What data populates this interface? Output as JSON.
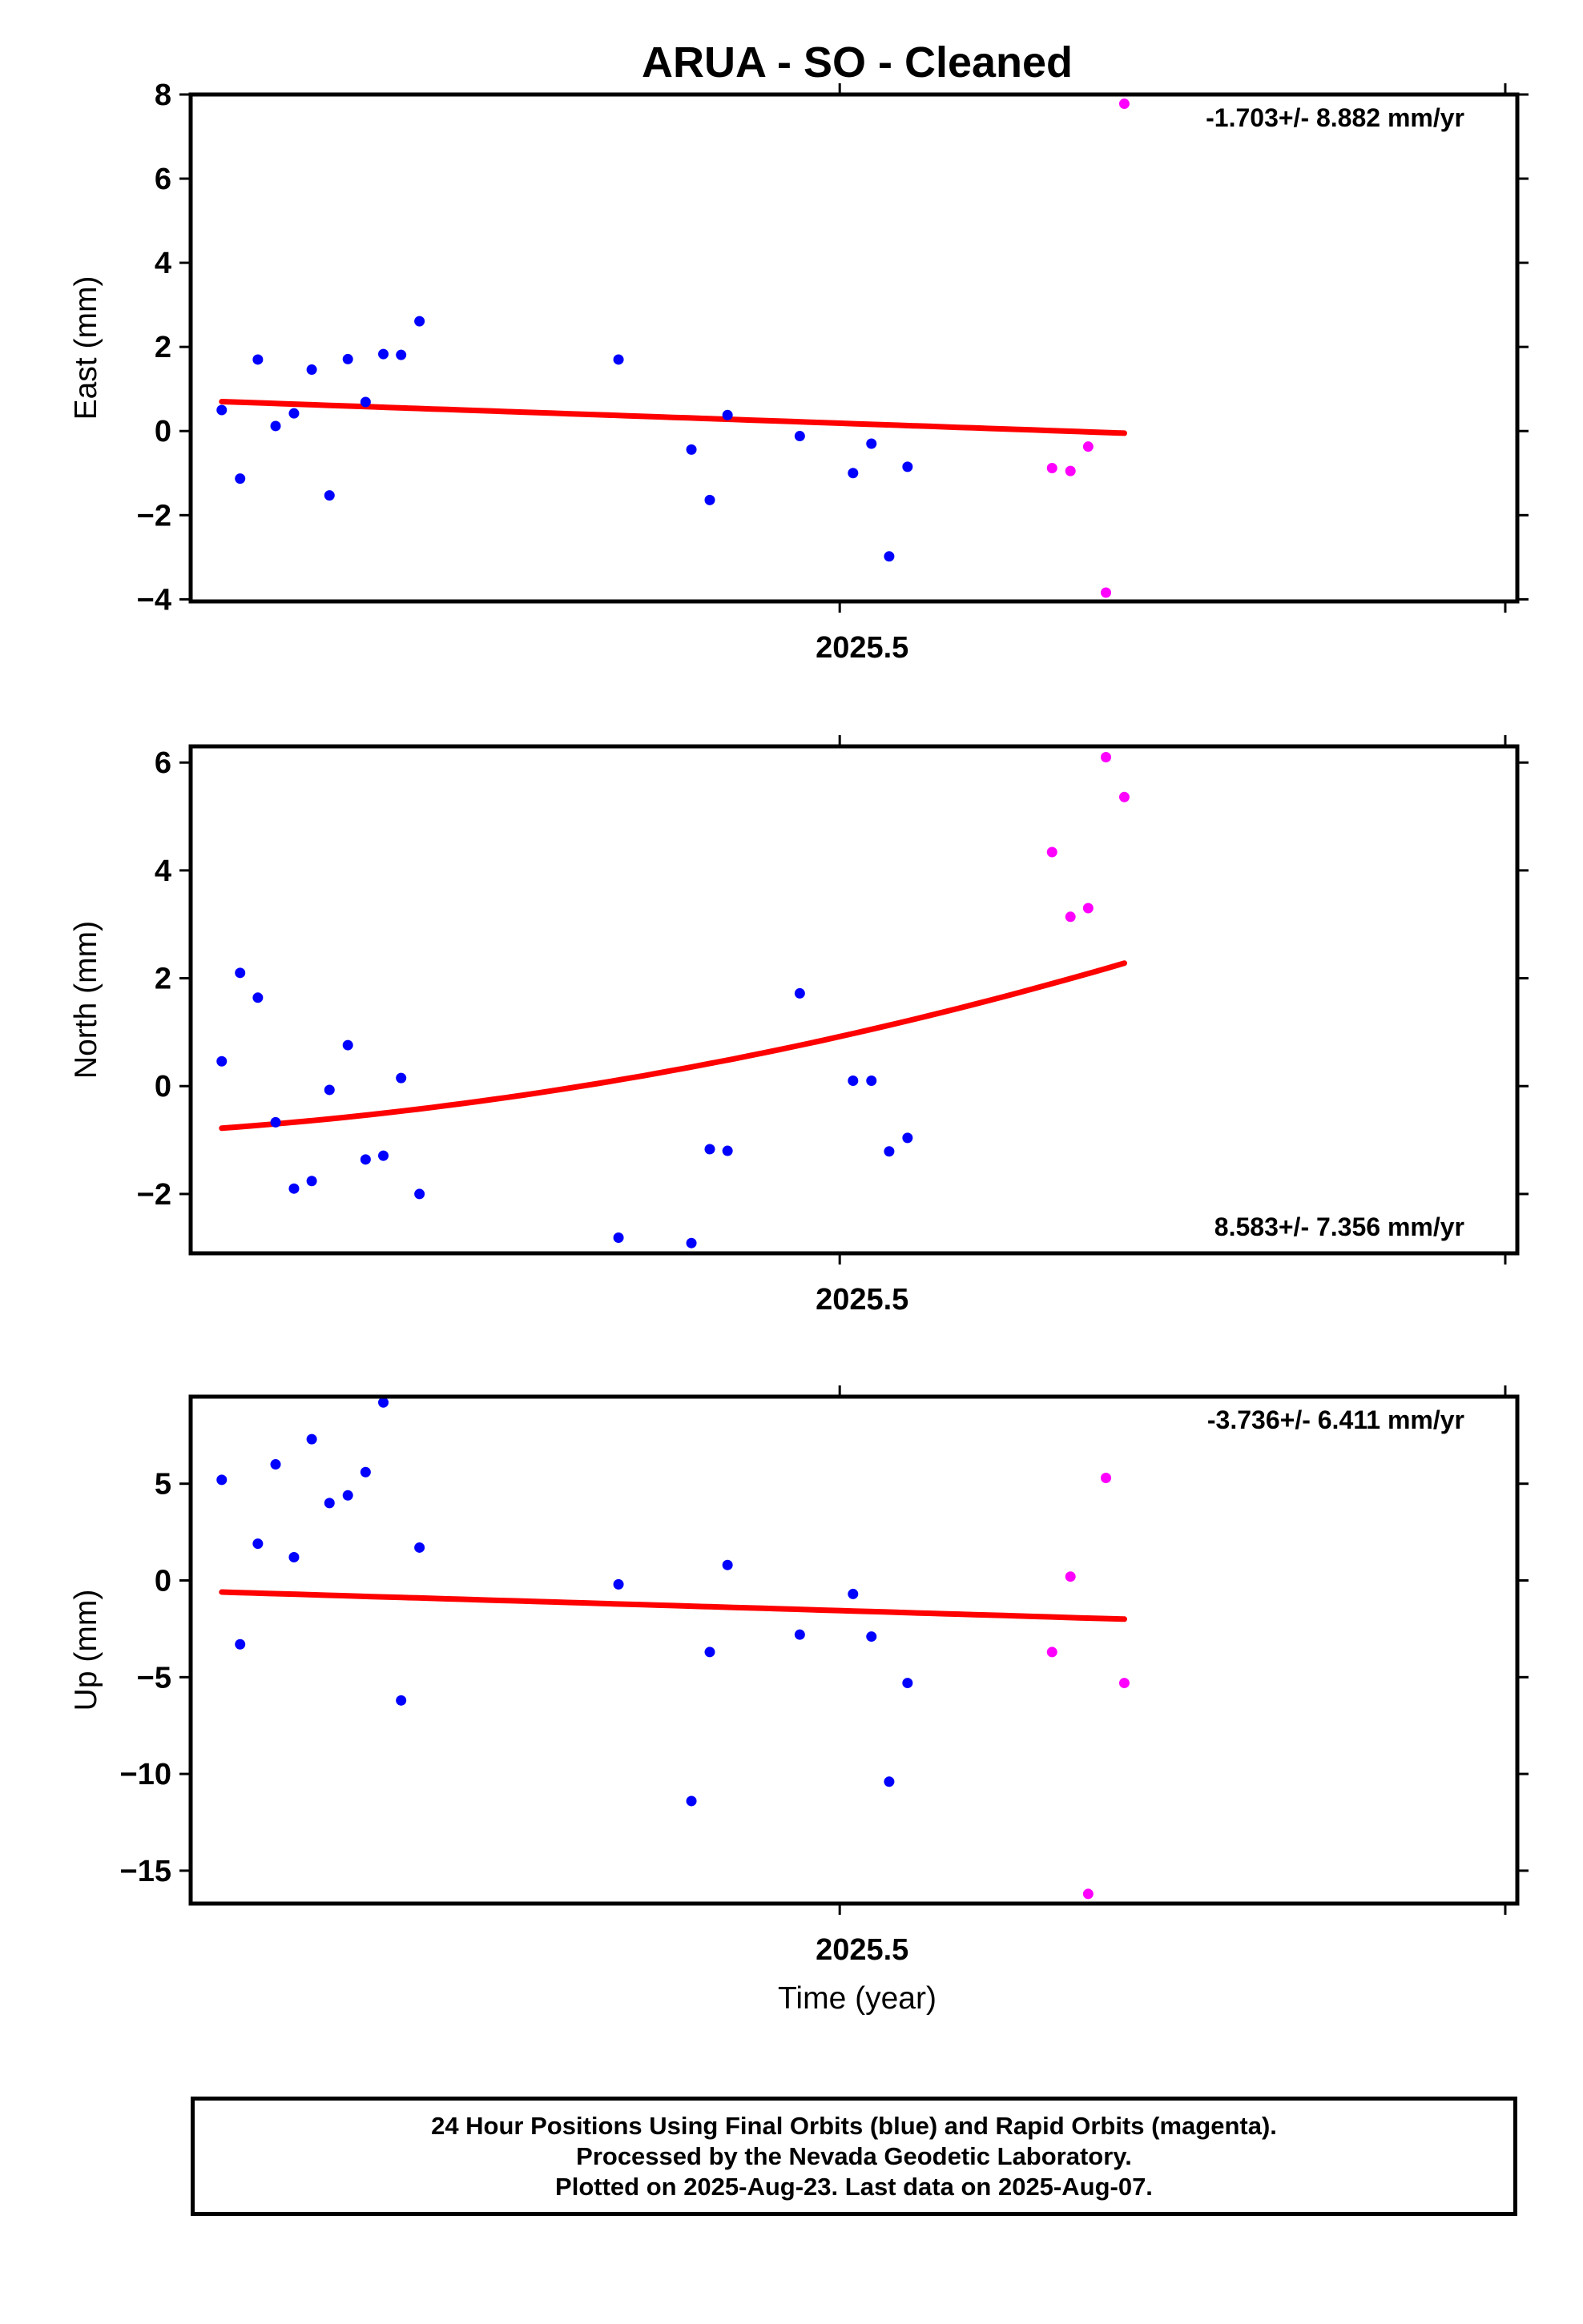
{
  "colors": {
    "final": "#0000ff",
    "rapid": "#ff00ff",
    "trend": "#ff0000",
    "axis": "#000000"
  },
  "chart_data": {
    "type": "scatter",
    "title": "ARUA  - SO - Cleaned",
    "xlabel": "Time (year)",
    "xlim": [
      2025.3976,
      2025.6069
    ],
    "x_ticks": [
      {
        "value": 2025.5,
        "label": "2025.5"
      },
      {
        "value": 2025.605,
        "label": ""
      }
    ],
    "panels": [
      {
        "id": "east",
        "ylabel": "East (mm)",
        "ylim": [
          -4.05,
          8.0
        ],
        "y_ticks": [
          {
            "value": 8,
            "label": "8"
          },
          {
            "value": 6,
            "label": "6"
          },
          {
            "value": 4,
            "label": "4"
          },
          {
            "value": 2,
            "label": "2"
          },
          {
            "value": 0,
            "label": "0"
          },
          {
            "value": -2,
            "label": "−2"
          },
          {
            "value": -4,
            "label": "−4"
          }
        ],
        "rate_label": "-1.703+/- 8.882 mm/yr",
        "rate_position": "top-right",
        "series": [
          {
            "color": "blue",
            "x": [
              2025.4025,
              2025.4054,
              2025.4082,
              2025.411,
              2025.4139,
              2025.4167,
              2025.4195,
              2025.4224,
              2025.4252,
              2025.428,
              2025.4308,
              2025.4337,
              2025.4651,
              2025.4766,
              2025.4795,
              2025.4823,
              2025.4937,
              2025.5021,
              2025.505,
              2025.5078,
              2025.5107
            ],
            "y": [
              0.5,
              -1.13,
              1.7,
              0.12,
              0.42,
              1.46,
              -1.53,
              1.71,
              0.69,
              1.83,
              1.81,
              2.61,
              1.7,
              -0.44,
              -1.64,
              0.38,
              -0.12,
              -1.0,
              -0.3,
              -2.98,
              -0.85
            ]
          },
          {
            "color": "magenta",
            "x": [
              2025.5335,
              2025.5364,
              2025.5392,
              2025.542,
              2025.5449
            ],
            "y": [
              -0.88,
              -0.95,
              -0.37,
              -3.84,
              7.78
            ]
          }
        ],
        "trend": {
          "x": [
            2025.4025,
            2025.5449
          ],
          "y": [
            0.7,
            -0.05
          ],
          "curvature": 0
        }
      },
      {
        "id": "north",
        "ylabel": "North (mm)",
        "ylim": [
          -3.1,
          6.3
        ],
        "y_ticks": [
          {
            "value": 6,
            "label": "6"
          },
          {
            "value": 4,
            "label": "4"
          },
          {
            "value": 2,
            "label": "2"
          },
          {
            "value": 0,
            "label": "0"
          },
          {
            "value": -2,
            "label": "−2"
          }
        ],
        "rate_label": "8.583+/- 7.356 mm/yr",
        "rate_position": "bottom-right",
        "series": [
          {
            "color": "blue",
            "x": [
              2025.4025,
              2025.4054,
              2025.4082,
              2025.411,
              2025.4139,
              2025.4167,
              2025.4195,
              2025.4224,
              2025.4252,
              2025.428,
              2025.4308,
              2025.4337,
              2025.4651,
              2025.4766,
              2025.4795,
              2025.4823,
              2025.4937,
              2025.5021,
              2025.505,
              2025.5078,
              2025.5107
            ],
            "y": [
              0.46,
              2.1,
              1.64,
              -0.67,
              -1.9,
              -1.76,
              -0.07,
              0.76,
              -1.36,
              -1.29,
              0.15,
              -2.0,
              -2.81,
              -2.91,
              -1.17,
              -1.2,
              1.72,
              0.1,
              0.1,
              -1.21,
              -0.96
            ]
          },
          {
            "color": "magenta",
            "x": [
              2025.5335,
              2025.5364,
              2025.5392,
              2025.542,
              2025.5449
            ],
            "y": [
              4.34,
              3.14,
              3.3,
              6.1,
              5.36
            ]
          }
        ],
        "trend": {
          "x": [
            2025.4025,
            2025.5449
          ],
          "y": [
            -0.78,
            2.28
          ],
          "curvature": 1.2
        }
      },
      {
        "id": "up",
        "ylabel": "Up (mm)",
        "ylim": [
          -16.7,
          9.5
        ],
        "y_ticks": [
          {
            "value": 5,
            "label": "5"
          },
          {
            "value": 0,
            "label": "0"
          },
          {
            "value": -5,
            "label": "−5"
          },
          {
            "value": -10,
            "label": "−10"
          },
          {
            "value": -15,
            "label": "−15"
          }
        ],
        "rate_label": "-3.736+/- 6.411 mm/yr",
        "rate_position": "top-right",
        "series": [
          {
            "color": "blue",
            "x": [
              2025.4025,
              2025.4054,
              2025.4082,
              2025.411,
              2025.4139,
              2025.4167,
              2025.4195,
              2025.4224,
              2025.4252,
              2025.428,
              2025.4308,
              2025.4337,
              2025.4651,
              2025.4766,
              2025.4795,
              2025.4823,
              2025.4937,
              2025.5021,
              2025.505,
              2025.5078,
              2025.5107
            ],
            "y": [
              5.2,
              -3.3,
              1.9,
              6.0,
              1.2,
              7.3,
              4.0,
              4.4,
              5.6,
              9.2,
              -6.2,
              1.7,
              -0.2,
              -11.4,
              -3.7,
              0.8,
              -2.8,
              -0.7,
              -2.9,
              -10.4,
              -5.3
            ]
          },
          {
            "color": "magenta",
            "x": [
              2025.5335,
              2025.5364,
              2025.5392,
              2025.542,
              2025.5449
            ],
            "y": [
              -3.7,
              0.2,
              -16.2,
              5.3,
              -5.3
            ]
          }
        ],
        "trend": {
          "x": [
            2025.4025,
            2025.5449
          ],
          "y": [
            -0.6,
            -2.0
          ],
          "curvature": 0
        }
      }
    ]
  },
  "footer": {
    "line1": "24 Hour Positions Using Final Orbits (blue) and Rapid Orbits (magenta).",
    "line2": "Processed by the Nevada Geodetic Laboratory.",
    "line3": "Plotted on 2025-Aug-23. Last data on 2025-Aug-07."
  }
}
